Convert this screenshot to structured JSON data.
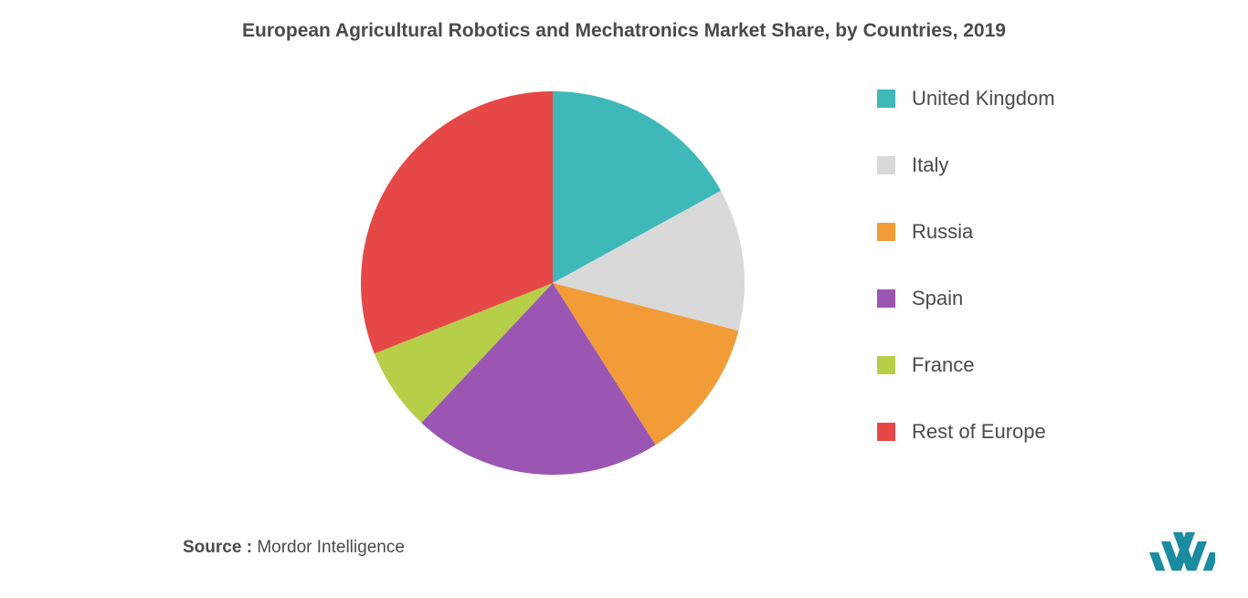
{
  "chart": {
    "type": "pie",
    "title": "European Agricultural Robotics and Mechatronics Market Share, by Countries, 2019",
    "title_fontsize": 21,
    "title_color": "#4a4a4a",
    "background_color": "#ffffff",
    "radius": 210,
    "slices": [
      {
        "label": "United Kingdom",
        "value": 17,
        "color": "#3fb8ba"
      },
      {
        "label": "Italy",
        "value": 12,
        "color": "#d9d9d9"
      },
      {
        "label": "Russia",
        "value": 12,
        "color": "#f29c38"
      },
      {
        "label": "Spain",
        "value": 21,
        "color": "#9b56b3"
      },
      {
        "label": "France",
        "value": 7,
        "color": "#b6ce48"
      },
      {
        "label": "Rest of Europe",
        "value": 31,
        "color": "#e64848"
      }
    ],
    "start_angle_deg": -90,
    "legend": {
      "position": "right",
      "swatch_size": 20,
      "label_fontsize": 22,
      "label_color": "#4a4a4a",
      "gap": 47
    }
  },
  "source": {
    "label": "Source :",
    "value": "Mordor Intelligence",
    "fontsize": 19,
    "color": "#4a4a4a"
  },
  "logo": {
    "name": "mordor-intelligence-logo",
    "bar_color": "#1b8ba0",
    "bg_color": "#ffffff"
  }
}
